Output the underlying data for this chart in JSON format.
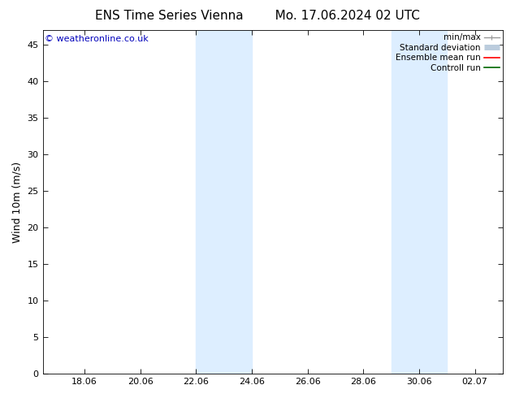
{
  "title_left": "ENS Time Series Vienna",
  "title_right": "Mo. 17.06.2024 02 UTC",
  "ylabel": "Wind 10m (m/s)",
  "watermark": "© weatheronline.co.uk",
  "bg_color": "#ffffff",
  "plot_bg_color": "#ffffff",
  "shaded_bands": [
    {
      "x_start": 22,
      "x_end": 24,
      "color": "#ddeeff"
    },
    {
      "x_start": 29,
      "x_end": 31,
      "color": "#ddeeff"
    }
  ],
  "x_ticks_num": [
    18,
    20,
    22,
    24,
    26,
    28,
    30,
    32
  ],
  "x_tick_labels": [
    "18.06",
    "20.06",
    "22.06",
    "24.06",
    "26.06",
    "28.06",
    "30.06",
    "02.07"
  ],
  "x_min": 16.5,
  "x_max": 33.0,
  "y_min": 0,
  "y_max": 47,
  "y_ticks": [
    0,
    5,
    10,
    15,
    20,
    25,
    30,
    35,
    40,
    45
  ],
  "legend_entries": [
    {
      "label": "min/max",
      "color": "#999999",
      "lw": 1.0
    },
    {
      "label": "Standard deviation",
      "color": "#bbccdd",
      "lw": 5
    },
    {
      "label": "Ensemble mean run",
      "color": "#ff0000",
      "lw": 1.2
    },
    {
      "label": "Controll run",
      "color": "#006600",
      "lw": 1.2
    }
  ],
  "font_size_title": 11,
  "font_size_legend": 7.5,
  "font_size_ticks": 8,
  "font_size_ylabel": 9,
  "font_size_watermark": 8
}
